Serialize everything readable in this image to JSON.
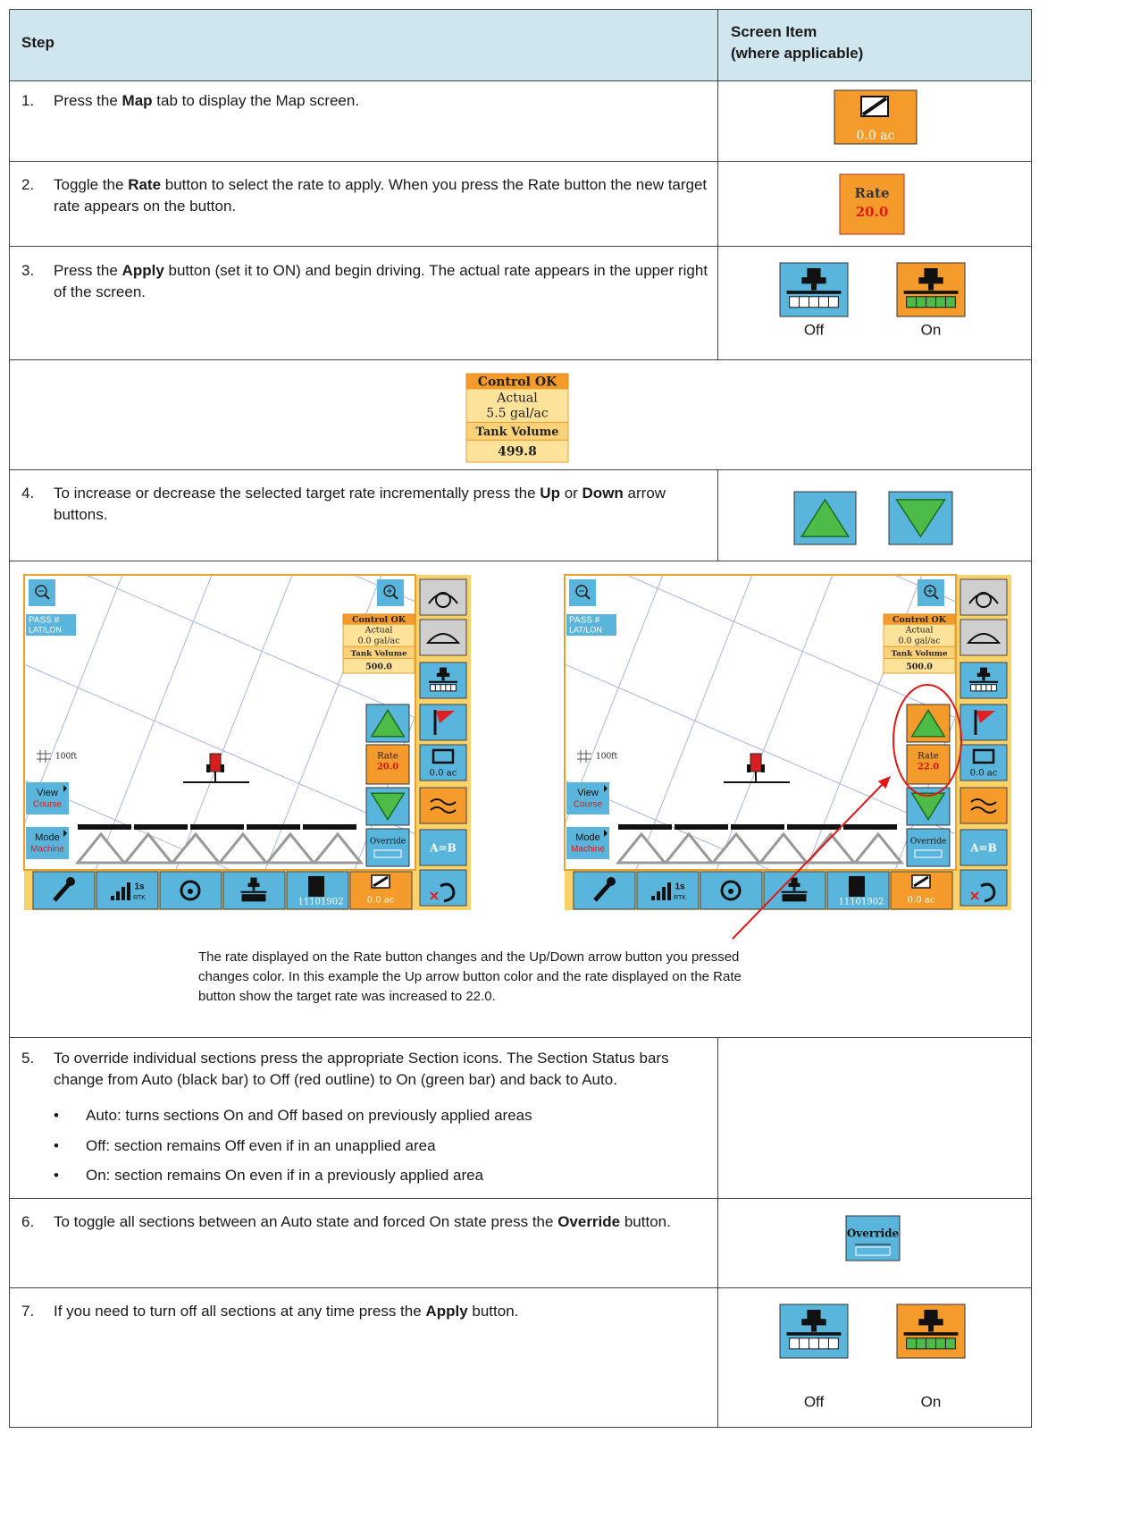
{
  "table": {
    "header": {
      "step": "Step",
      "screen_item": [
        "Screen Item",
        "(where applicable)"
      ]
    },
    "rows": [
      {
        "number": "1.",
        "text": [
          {
            "text": "Press the "
          },
          {
            "text": "Map",
            "bold": true
          },
          {
            "text": " tab to display the Map screen."
          }
        ],
        "item": {
          "icon": "map",
          "label": "0.0 ac"
        }
      },
      {
        "number": "2.",
        "text": [
          {
            "text": "Toggle the "
          },
          {
            "text": "Rate",
            "bold": true
          },
          {
            "text": " button to select the rate to apply. When you press the Rate button the new target rate appears on the button."
          }
        ],
        "item": {
          "icon": "rate",
          "title": "Rate",
          "value": "20.0"
        }
      },
      {
        "number": "3.",
        "text": [
          {
            "text": "Press the "
          },
          {
            "text": "Apply",
            "bold": true
          },
          {
            "text": " button (set it to ON) and begin driving. The actual rate appears in the upper right of the screen."
          }
        ],
        "item": {
          "icon": "apply",
          "captions": [
            "Off",
            "On"
          ]
        }
      },
      {
        "panel": [
          "Control OK",
          "Actual",
          "5.5 gal/ac",
          "Tank Volume",
          "499.8"
        ]
      },
      {
        "number": "4.",
        "text": [
          {
            "text": "To increase or decrease the selected target rate incrementally press the "
          },
          {
            "text": "Up",
            "bold": true
          },
          {
            "text": " or "
          },
          {
            "text": "Down",
            "bold": true
          },
          {
            "text": " arrow buttons."
          }
        ],
        "item": {
          "icon": "arrows"
        }
      },
      {
        "screens": [
          {
            "pass": "PASS #",
            "latlon": "LAT/LON",
            "scale": "100ft",
            "view": [
              "View",
              "Course"
            ],
            "mode": [
              "Mode",
              "Machine"
            ],
            "panel": [
              "Control OK",
              "Actual",
              "0.0 gal/ac",
              "Tank Volume",
              "500.0"
            ],
            "rate": [
              "Rate",
              "20.0"
            ],
            "override": "Override",
            "side_area": "0.0 ac",
            "ab": "A=B",
            "signal": [
              "1s",
              "RTK"
            ],
            "field": "11101902",
            "area": "0.0 ac",
            "highlight": false
          },
          {
            "pass": "PASS #",
            "latlon": "LAT/LON",
            "scale": "100ft",
            "view": [
              "View",
              "Course"
            ],
            "mode": [
              "Mode",
              "Machine"
            ],
            "panel": [
              "Control OK",
              "Actual",
              "0.0 gal/ac",
              "Tank Volume",
              "500.0"
            ],
            "rate": [
              "Rate",
              "22.0"
            ],
            "override": "Override",
            "side_area": "0.0 ac",
            "ab": "A=B",
            "signal": [
              "1s",
              "RTK"
            ],
            "field": "11101902",
            "area": "0.0 ac",
            "highlight": true
          }
        ],
        "caption": "The rate displayed on the Rate button changes and the Up/Down arrow button you pressed changes color. In this example the Up arrow button color and the rate displayed on the Rate button show the target rate was increased to 22.0."
      },
      {
        "number": "5.",
        "text": [
          {
            "text": "To override individual sections press the appropriate Section icons. The Section Status bars change from Auto (black bar) to Off (red outline) to On (green bar) and back to Auto."
          }
        ],
        "bullets": [
          "Auto: turns sections On and Off based on previously applied areas",
          "Off: section remains Off even if in an unapplied area",
          "On: section remains On even if in a previously applied area"
        ]
      },
      {
        "number": "6.",
        "text": [
          {
            "text": "To toggle all sections between an Auto state and forced On state press the "
          },
          {
            "text": "Override",
            "bold": true
          },
          {
            "text": " button."
          }
        ],
        "item": {
          "icon": "override",
          "label": "Override"
        }
      },
      {
        "number": "7.",
        "text": [
          {
            "text": "If you need to turn off all sections at any time press the "
          },
          {
            "text": "Apply",
            "bold": true
          },
          {
            "text": " button."
          }
        ],
        "item": {
          "icon": "apply",
          "captions": [
            "Off",
            "On"
          ]
        }
      }
    ]
  }
}
